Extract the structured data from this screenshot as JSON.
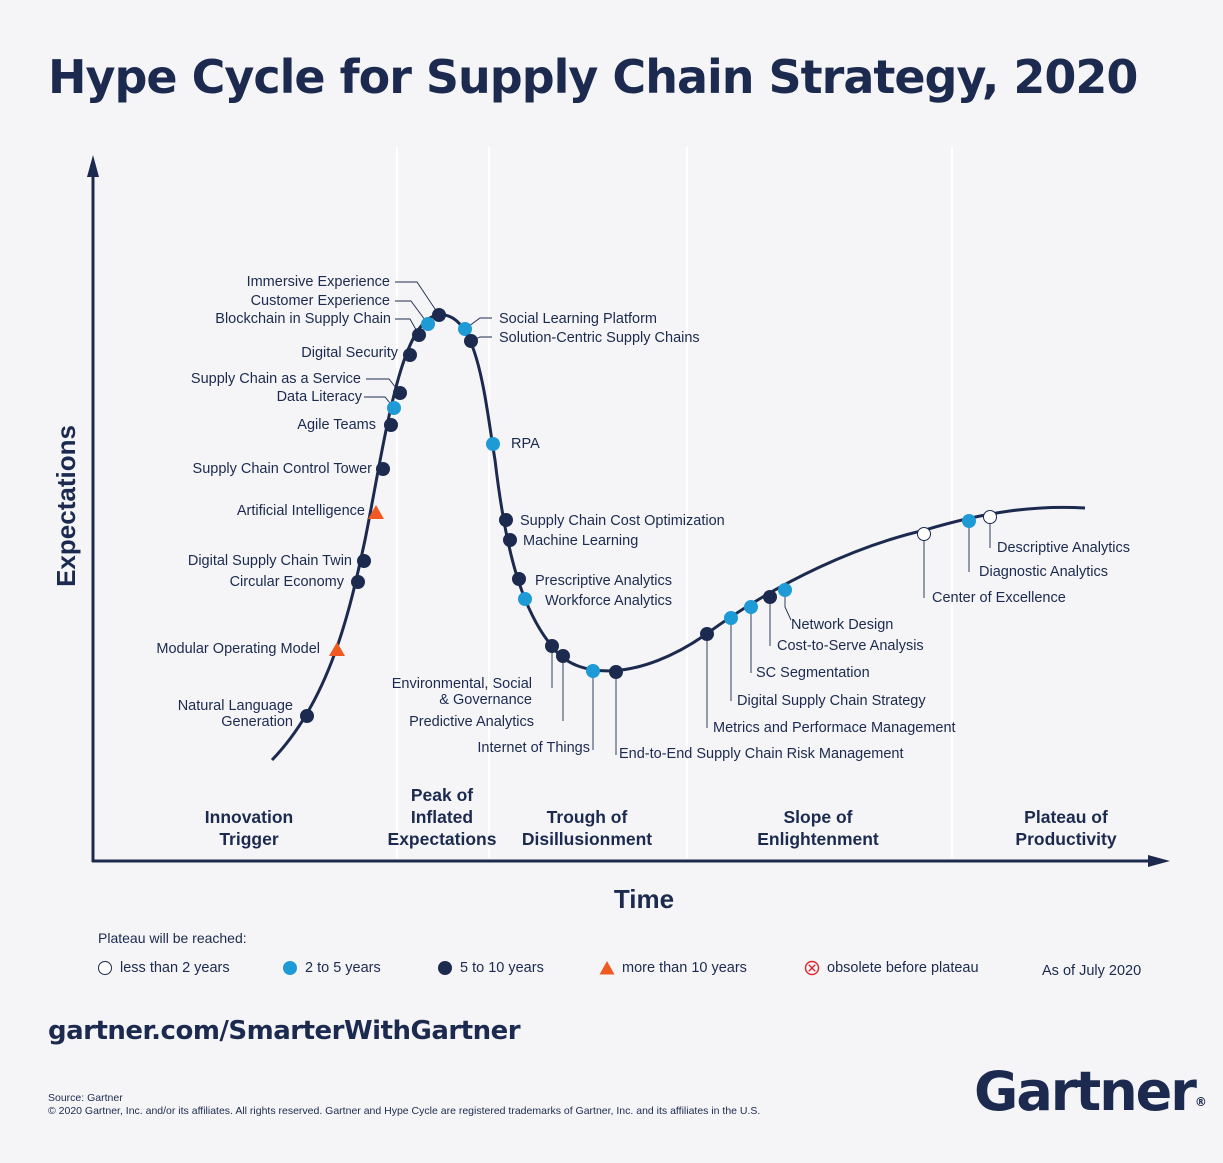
{
  "title": "Hype Cycle for Supply Chain Strategy, 2020",
  "axis": {
    "y_label": "Expectations",
    "x_label": "Time"
  },
  "phases": [
    {
      "lines": [
        "Innovation",
        "Trigger"
      ]
    },
    {
      "lines": [
        "Peak of",
        "Inflated",
        "Expectations"
      ]
    },
    {
      "lines": [
        "Trough of",
        "Disillusionment"
      ]
    },
    {
      "lines": [
        "Slope of",
        "Enlightenment"
      ]
    },
    {
      "lines": [
        "Plateau of",
        "Productivity"
      ]
    }
  ],
  "categories": {
    "lt2": {
      "label": "less than 2 years",
      "color": "#ffffff"
    },
    "y2to5": {
      "label": "2 to 5 years",
      "color": "#1e9ad6"
    },
    "y5to10": {
      "label": "5 to 10 years",
      "color": "#1b2a4e"
    },
    "gt10": {
      "label": "more than 10 years",
      "color": "#f05a22"
    },
    "obsolete": {
      "label": "obsolete before plateau",
      "color": "#e0262e"
    }
  },
  "legend_title": "Plateau will be reached:",
  "technologies": [
    {
      "name": [
        "Natural Language",
        "Generation"
      ],
      "category": "y5to10"
    },
    {
      "name": [
        "Modular Operating Model"
      ],
      "category": "gt10"
    },
    {
      "name": [
        "Circular Economy"
      ],
      "category": "y5to10"
    },
    {
      "name": [
        "Digital Supply Chain Twin"
      ],
      "category": "y5to10"
    },
    {
      "name": [
        "Artificial Intelligence"
      ],
      "category": "gt10"
    },
    {
      "name": [
        "Supply Chain Control Tower"
      ],
      "category": "y5to10"
    },
    {
      "name": [
        "Agile Teams"
      ],
      "category": "y5to10"
    },
    {
      "name": [
        "Data Literacy"
      ],
      "category": "y2to5"
    },
    {
      "name": [
        "Supply Chain as a Service"
      ],
      "category": "y5to10"
    },
    {
      "name": [
        "Digital Security"
      ],
      "category": "y5to10"
    },
    {
      "name": [
        "Blockchain in Supply Chain"
      ],
      "category": "y5to10"
    },
    {
      "name": [
        "Customer Experience"
      ],
      "category": "y2to5"
    },
    {
      "name": [
        "Immersive Experience"
      ],
      "category": "y5to10"
    },
    {
      "name": [
        "Social Learning Platform"
      ],
      "category": "y2to5"
    },
    {
      "name": [
        "Solution-Centric Supply Chains"
      ],
      "category": "y5to10"
    },
    {
      "name": [
        "RPA"
      ],
      "category": "y2to5"
    },
    {
      "name": [
        "Supply Chain Cost Optimization"
      ],
      "category": "y5to10"
    },
    {
      "name": [
        "Machine Learning"
      ],
      "category": "y5to10"
    },
    {
      "name": [
        "Prescriptive Analytics"
      ],
      "category": "y5to10"
    },
    {
      "name": [
        "Workforce Analytics"
      ],
      "category": "y2to5"
    },
    {
      "name": [
        "Environmental, Social",
        "& Governance"
      ],
      "category": "y5to10"
    },
    {
      "name": [
        "Predictive Analytics"
      ],
      "category": "y5to10"
    },
    {
      "name": [
        "Internet of Things"
      ],
      "category": "y2to5"
    },
    {
      "name": [
        "End-to-End Supply Chain Risk Management"
      ],
      "category": "y5to10"
    },
    {
      "name": [
        "Metrics and Performace Management"
      ],
      "category": "y5to10"
    },
    {
      "name": [
        "Digital Supply Chain Strategy"
      ],
      "category": "y2to5"
    },
    {
      "name": [
        "SC Segmentation"
      ],
      "category": "y2to5"
    },
    {
      "name": [
        "Cost-to-Serve Analysis"
      ],
      "category": "y5to10"
    },
    {
      "name": [
        "Network Design"
      ],
      "category": "y2to5"
    },
    {
      "name": [
        "Center of Excellence"
      ],
      "category": "lt2"
    },
    {
      "name": [
        "Diagnostic Analytics"
      ],
      "category": "y2to5"
    },
    {
      "name": [
        "Descriptive Analytics"
      ],
      "category": "lt2"
    }
  ],
  "as_of": "As of July 2020",
  "url": "gartner.com/SmarterWithGartner",
  "source_lines": [
    "Source: Gartner",
    "© 2020 Gartner, Inc. and/or its affiliates. All rights reserved. Gartner and Hype Cycle are registered trademarks of Gartner, Inc. and its affiliates in the U.S."
  ],
  "logo": {
    "text": "Gartner",
    "mark": "®"
  }
}
